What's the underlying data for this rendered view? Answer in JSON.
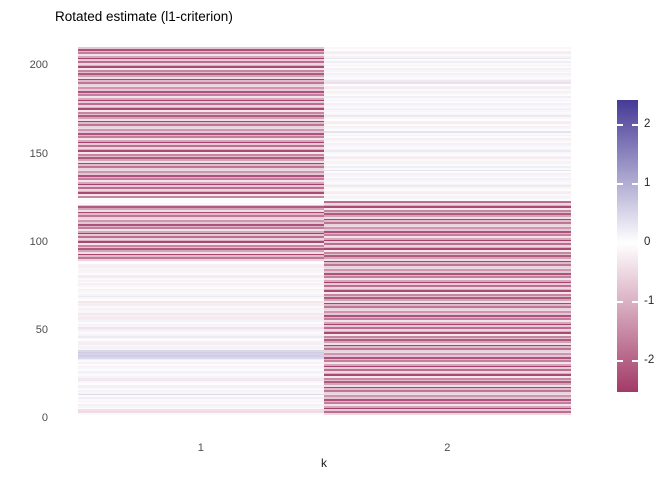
{
  "title": "Rotated estimate (l1-criterion)",
  "colors": {
    "background": "#ffffff",
    "axis_text": "#4d4d4d",
    "title_text": "#000000",
    "legend_text": "#262626"
  },
  "chart_data": {
    "type": "heatmap",
    "title": "Rotated estimate (l1-criterion)",
    "xlabel": "k",
    "ylabel": "",
    "x_categories": [
      "1",
      "2"
    ],
    "y_ticks": [
      0,
      50,
      100,
      150,
      200
    ],
    "ylim": [
      0,
      210
    ],
    "n_rows": 210,
    "row_order": "bottom-to-top",
    "value_limits": [
      -2.45,
      2.45
    ],
    "grid": false,
    "legend_position": "right",
    "colorbar": {
      "ticks": [
        2,
        1,
        0,
        -1,
        -2
      ],
      "high_color": "#453A96",
      "mid_color": "#FFFFFF",
      "low_color": "#A23A67"
    },
    "series": [
      {
        "name": "k=1",
        "values": [
          0.06,
          -0.45,
          -0.4,
          -0.05,
          0.1,
          -0.2,
          0.04,
          0.15,
          -0.08,
          0.2,
          -0.04,
          0.45,
          0.12,
          -0.16,
          0.07,
          -0.22,
          0.18,
          0.02,
          -0.1,
          -0.3,
          0.25,
          -0.15,
          0.06,
          -0.12,
          0.18,
          -0.05,
          0.1,
          -0.2,
          0.04,
          0.15,
          -0.08,
          0.2,
          0.5,
          0.62,
          0.55,
          0.65,
          0.48,
          0.12,
          -0.16,
          0.07,
          -0.22,
          0.18,
          0.02,
          -0.1,
          0.25,
          -0.15,
          0.06,
          -0.12,
          0.18,
          -0.35,
          0.1,
          -0.2,
          0.04,
          0.15,
          -0.25,
          -0.3,
          -0.2,
          -0.28,
          -0.1,
          0.12,
          -0.16,
          0.07,
          -0.22,
          0.18,
          -0.3,
          0.02,
          -0.1,
          0.25,
          -0.15,
          0.06,
          -0.12,
          0.18,
          -0.05,
          0.1,
          -0.2,
          0.04,
          0.15,
          -0.08,
          -0.25,
          0.2,
          -0.04,
          0.12,
          -0.16,
          0.07,
          -0.22,
          0.18,
          0.02,
          -0.1,
          -0.55,
          -1.7,
          -0.85,
          -2.3,
          -0.4,
          -1.15,
          -2.05,
          -0.75,
          -1.5,
          -0.3,
          -2.25,
          -1.0,
          -0.5,
          -1.8,
          -0.65,
          -2.35,
          -1.1,
          -0.35,
          -1.6,
          -0.9,
          -2.15,
          -0.7,
          -1.3,
          -0.45,
          -0.55,
          -1.7,
          -0.85,
          -2.3,
          -0.4,
          -1.15,
          -2.05,
          -0.75,
          -0.06,
          0.03,
          -0.04,
          0.05,
          -1.5,
          -0.3,
          -2.25,
          -1.0,
          -0.5,
          -1.8,
          -0.65,
          -2.35,
          -1.1,
          -0.35,
          -1.6,
          -0.9,
          -2.15,
          -0.7,
          -1.3,
          -0.45,
          -0.55,
          -1.7,
          -0.85,
          -2.3,
          -0.4,
          -1.15,
          -2.05,
          -0.75,
          -1.5,
          -0.3,
          -2.25,
          -1.0,
          -0.5,
          -1.8,
          -0.65,
          -2.35,
          -1.1,
          -0.35,
          -1.6,
          -0.9,
          -2.15,
          -0.7,
          -1.3,
          -0.45,
          -0.55,
          -1.7,
          -0.85,
          -2.3,
          -0.4,
          -1.15,
          -2.05,
          -0.75,
          -1.5,
          -0.3,
          -2.25,
          -1.0,
          -0.5,
          -1.8,
          -0.65,
          -2.35,
          -1.1,
          -0.35,
          -1.6,
          -0.9,
          -2.15,
          -0.7,
          -1.3,
          -0.45,
          -0.55,
          -1.7,
          -0.85,
          -2.3,
          -0.4,
          -1.15,
          -2.05,
          -0.75,
          -1.5,
          -0.3,
          -2.25,
          -1.0,
          -0.5,
          -1.8,
          -0.65,
          -2.35,
          -1.1,
          -0.35,
          -1.6,
          -0.9,
          -2.15,
          -0.7
        ]
      },
      {
        "name": "k=2",
        "values": [
          -0.5,
          -1.8,
          -0.65,
          -2.35,
          -1.1,
          -0.35,
          -1.6,
          -0.9,
          -2.15,
          -0.7,
          -1.3,
          -0.45,
          -0.55,
          -1.7,
          -0.85,
          -2.3,
          -0.4,
          -1.15,
          -2.05,
          -0.75,
          -1.5,
          -0.3,
          -2.25,
          -1.0,
          -0.5,
          -1.8,
          -0.65,
          -2.35,
          -1.1,
          -0.35,
          -1.6,
          -0.9,
          -2.15,
          -0.7,
          -1.3,
          -0.45,
          -0.55,
          -1.7,
          -0.85,
          -2.3,
          -0.4,
          -1.15,
          -2.05,
          -0.75,
          -1.5,
          -0.3,
          -2.25,
          -1.0,
          -0.5,
          -1.8,
          -0.65,
          -2.35,
          -1.1,
          -0.35,
          -1.6,
          -0.9,
          -2.15,
          -0.7,
          -1.3,
          -0.45,
          -0.55,
          -1.7,
          -0.85,
          -2.3,
          -0.4,
          -1.15,
          -2.05,
          -0.75,
          -1.5,
          -0.3,
          -2.25,
          -1.0,
          -0.5,
          -1.8,
          -0.65,
          -2.35,
          -1.1,
          -0.35,
          -1.6,
          -0.9,
          -2.15,
          -0.7,
          -1.3,
          -0.45,
          -0.55,
          -1.7,
          -0.85,
          -2.3,
          -0.4,
          -1.15,
          -2.05,
          -0.75,
          -1.5,
          -0.3,
          -2.25,
          -1.0,
          -0.5,
          -1.8,
          -0.65,
          -2.35,
          -1.1,
          -0.35,
          -1.6,
          -0.9,
          -2.15,
          -0.7,
          -1.3,
          -0.45,
          -0.55,
          -1.7,
          -0.85,
          -2.3,
          -0.4,
          -1.15,
          -2.05,
          -0.75,
          -1.5,
          -0.3,
          -2.25,
          -1.0,
          -0.5,
          -1.8,
          -0.04,
          0.12,
          -0.16,
          0.07,
          -0.22,
          0.18,
          0.02,
          -0.1,
          0.25,
          -0.15,
          0.06,
          -0.12,
          0.18,
          -0.05,
          0.1,
          -0.2,
          0.04,
          0.35,
          -0.08,
          0.2,
          -0.04,
          0.12,
          -0.16,
          0.07,
          -0.22,
          0.18,
          0.02,
          -0.1,
          0.25,
          -0.15,
          0.06,
          -0.12,
          0.18,
          -0.05,
          0.1,
          -0.2,
          0.04,
          0.15,
          -0.08,
          0.35,
          -0.04,
          0.12,
          -0.16,
          0.07,
          -0.22,
          0.18,
          0.02,
          -0.1,
          0.25,
          -0.15,
          0.06,
          -0.12,
          0.18,
          -0.05,
          0.1,
          -0.2,
          0.04,
          0.15,
          -0.08,
          0.2,
          -0.04,
          0.12,
          -0.16,
          0.07,
          -0.22,
          0.18,
          0.02,
          -0.4,
          0.25,
          -0.15,
          0.06,
          -0.12,
          0.18,
          -0.05,
          0.1,
          -0.2,
          0.04,
          0.15,
          -0.08,
          0.2,
          -0.04,
          0.3,
          -0.16,
          0.07,
          -0.22,
          0.18,
          0.02,
          -0.1
        ]
      }
    ]
  }
}
